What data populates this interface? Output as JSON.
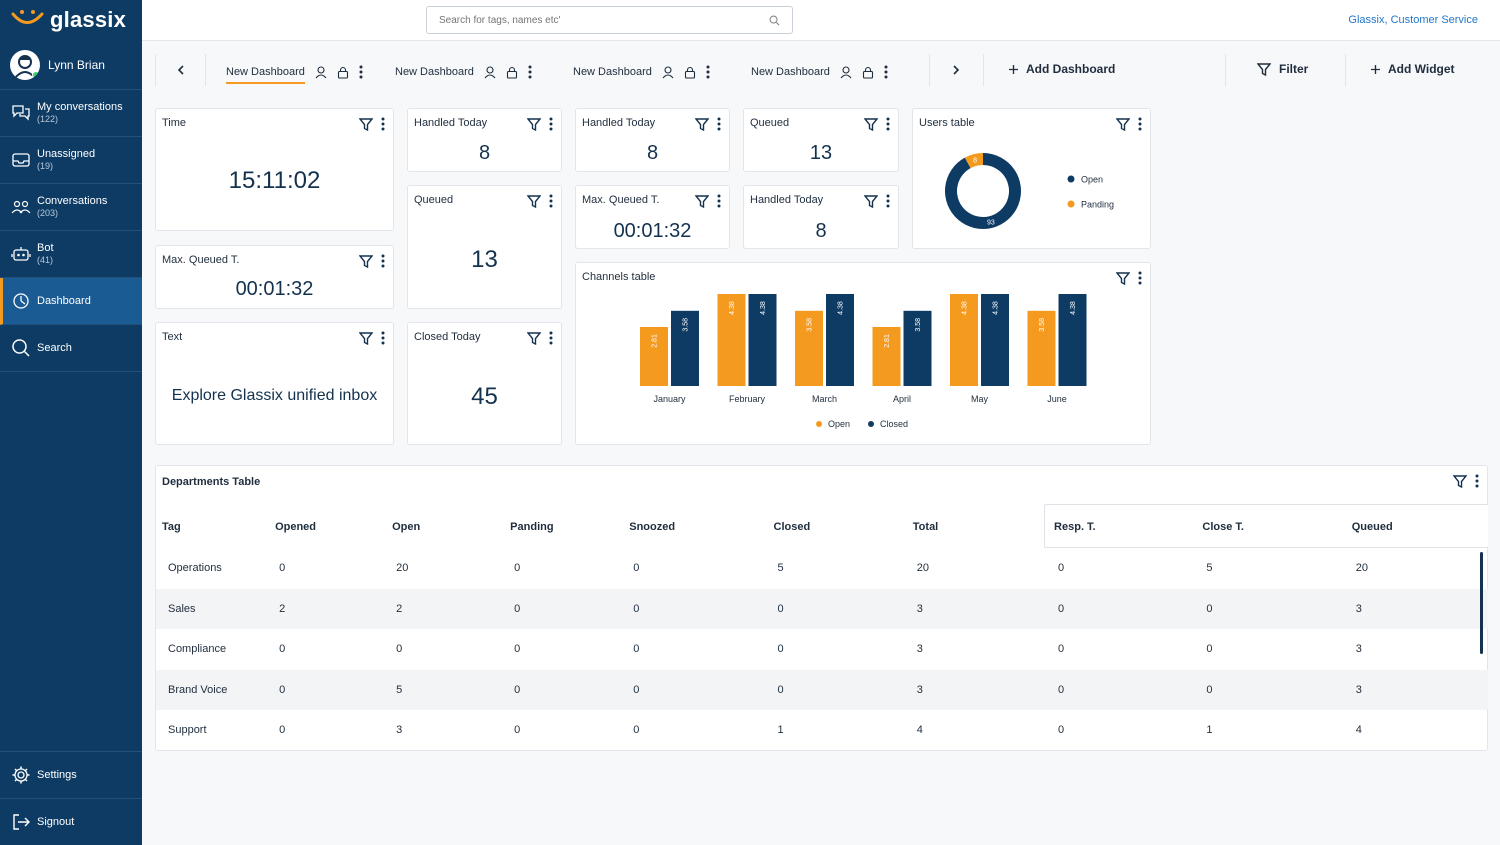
{
  "app": {
    "logo_text": "glassix"
  },
  "user": {
    "name": "Lynn Brian"
  },
  "nav": [
    {
      "label": "My conversations",
      "count": "(122)",
      "icon": "chat-bubbles-icon"
    },
    {
      "label": "Unassigned",
      "count": "(19)",
      "icon": "inbox-icon"
    },
    {
      "label": "Conversations",
      "count": "(203)",
      "icon": "team-icon"
    },
    {
      "label": "Bot",
      "count": "(41)",
      "icon": "bot-icon"
    },
    {
      "label": "Dashboard",
      "count": "",
      "icon": "dashboard-icon",
      "active": true
    },
    {
      "label": "Search",
      "count": "",
      "icon": "search-icon"
    }
  ],
  "nav_bottom": [
    {
      "label": "Settings",
      "icon": "gear-icon"
    },
    {
      "label": "Signout",
      "icon": "signout-icon"
    }
  ],
  "topbar": {
    "search_placeholder": "Search for tags, names etc'",
    "company": "Glassix, Customer Service"
  },
  "tabs": [
    {
      "label": "New Dashboard",
      "active": true
    },
    {
      "label": "New Dashboard"
    },
    {
      "label": "New Dashboard"
    },
    {
      "label": "New Dashboard"
    }
  ],
  "actions": {
    "add_dashboard": "Add Dashboard",
    "filter": "Filter",
    "add_widget": "Add Widget"
  },
  "widgets": {
    "time": {
      "title": "Time",
      "value": "15:11:02"
    },
    "max_queued_1": {
      "title": "Max. Queued T.",
      "value": "00:01:32"
    },
    "text": {
      "title": "Text",
      "value": "Explore Glassix unified inbox"
    },
    "handled_1": {
      "title": "Handled Today",
      "value": "8"
    },
    "queued_1": {
      "title": "Queued",
      "value": "13"
    },
    "closed_today": {
      "title": "Closed Today",
      "value": "45"
    },
    "handled_2": {
      "title": "Handled Today",
      "value": "8"
    },
    "max_queued_2": {
      "title": "Max. Queued T.",
      "value": "00:01:32"
    },
    "queued_2": {
      "title": "Queued",
      "value": "13"
    },
    "handled_3": {
      "title": "Handled Today",
      "value": "8"
    },
    "users_table": {
      "title": "Users table",
      "legend_open": "Open",
      "legend_pending": "Panding"
    },
    "channels_table": {
      "title": "Channels table"
    }
  },
  "chart_data": [
    {
      "type": "pie",
      "title": "Users table",
      "labels": [
        "Open",
        "Panding"
      ],
      "values": [
        93,
        8
      ],
      "colors": [
        "#0e3b64",
        "#f49a1f"
      ],
      "legend": "right"
    },
    {
      "type": "bar",
      "title": "Channels table",
      "categories": [
        "January",
        "February",
        "March",
        "April",
        "May",
        "June"
      ],
      "series": [
        {
          "name": "Open",
          "values": [
            2.81,
            4.38,
            3.58,
            2.81,
            4.38,
            3.58
          ],
          "color": "#f49a1f"
        },
        {
          "name": "Closed",
          "values": [
            3.58,
            4.38,
            4.38,
            3.58,
            4.38,
            4.38
          ],
          "color": "#0e3b64"
        }
      ],
      "ylim": [
        0,
        5
      ],
      "legend": "bottom"
    }
  ],
  "departments": {
    "title": "Departments Table",
    "columns": [
      "Tag",
      "Opened",
      "Open",
      "Panding",
      "Snoozed",
      "Closed",
      "Total",
      "Resp. T.",
      "Close T.",
      "Queued"
    ],
    "rows": [
      [
        "Operations",
        "0",
        "20",
        "0",
        "0",
        "5",
        "20",
        "0",
        "5",
        "20"
      ],
      [
        "Sales",
        "2",
        "2",
        "0",
        "0",
        "0",
        "3",
        "0",
        "0",
        "3"
      ],
      [
        "Compliance",
        "0",
        "0",
        "0",
        "0",
        "0",
        "3",
        "0",
        "0",
        "3"
      ],
      [
        "Brand Voice",
        "0",
        "5",
        "0",
        "0",
        "0",
        "3",
        "0",
        "0",
        "3"
      ],
      [
        "Support",
        "0",
        "3",
        "0",
        "0",
        "1",
        "4",
        "0",
        "1",
        "4"
      ]
    ]
  }
}
